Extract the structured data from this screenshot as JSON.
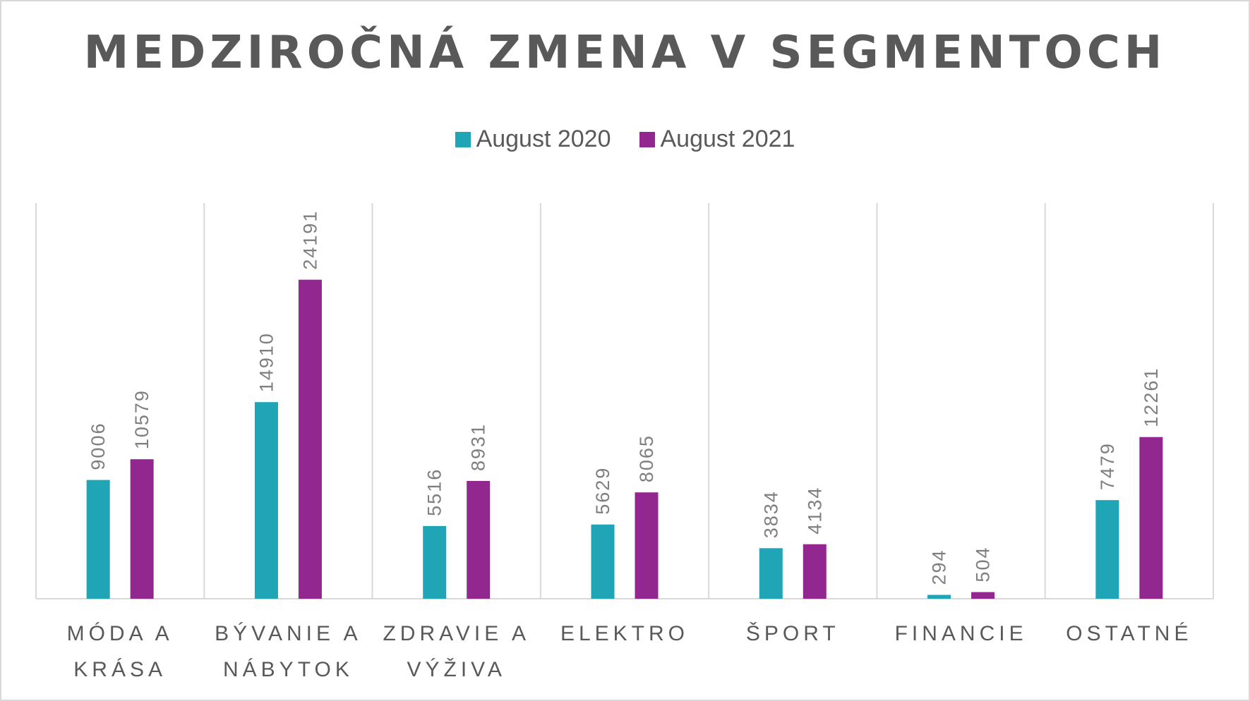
{
  "chart_data": {
    "type": "bar",
    "title": "MEDZIROČNÁ ZMENA V SEGMENTOCH",
    "categories": [
      [
        "MÓDA A",
        "KRÁSA"
      ],
      [
        "BÝVANIE A",
        "NÁBYTOK"
      ],
      [
        "ZDRAVIE A",
        "VÝŽIVA"
      ],
      [
        "ELEKTRO"
      ],
      [
        "ŠPORT"
      ],
      [
        "FINANCIE"
      ],
      [
        "OSTATNÉ"
      ]
    ],
    "series": [
      {
        "name": "August 2020",
        "color": "#1FA5B5",
        "values": [
          9006,
          14910,
          5516,
          5629,
          3834,
          294,
          7479
        ]
      },
      {
        "name": "August 2021",
        "color": "#92278F",
        "values": [
          10579,
          24191,
          8931,
          8065,
          4134,
          504,
          12261
        ]
      }
    ],
    "ylim": [
      0,
      30000
    ],
    "xlabel": "",
    "ylabel": "",
    "legend": "top",
    "grid": "vertical category separators"
  }
}
